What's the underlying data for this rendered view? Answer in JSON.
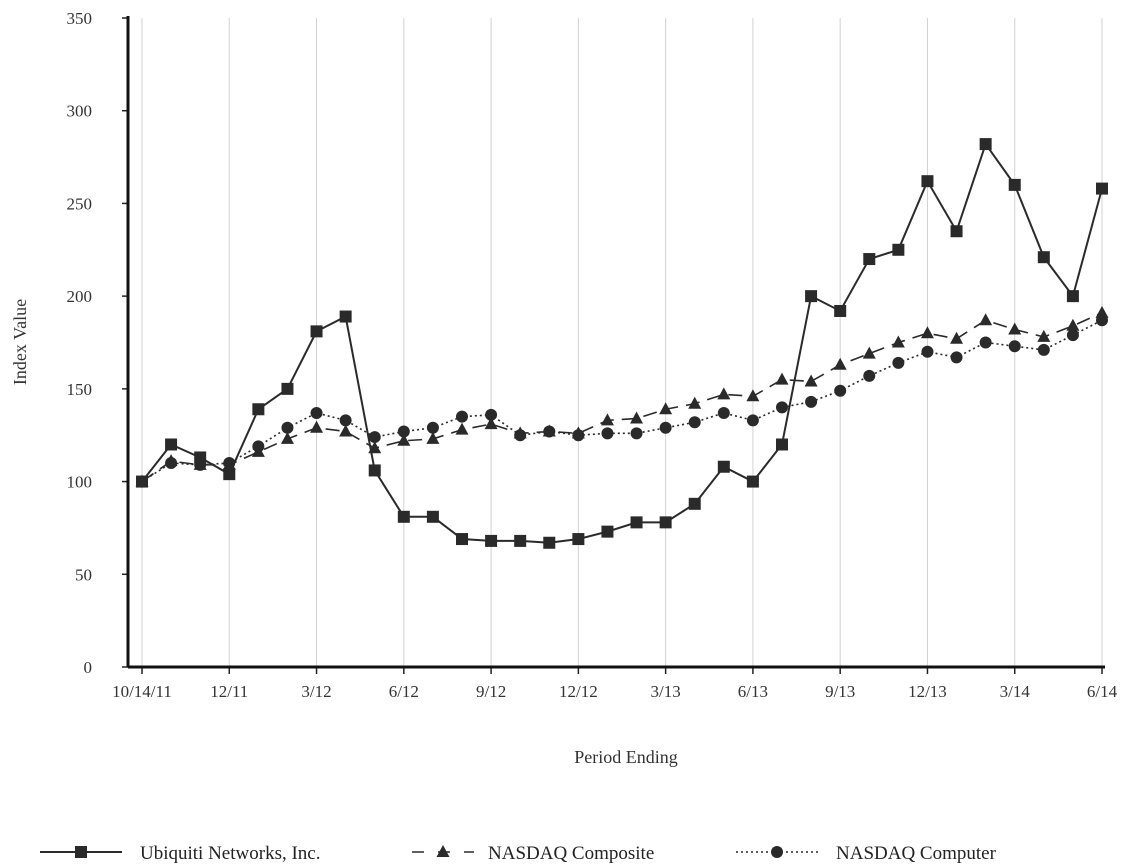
{
  "chart_data": {
    "type": "line",
    "title": "",
    "xlabel": "Period Ending",
    "ylabel": "Index Value",
    "ylim": [
      0,
      350
    ],
    "yticks": [
      0,
      50,
      100,
      150,
      200,
      250,
      300,
      350
    ],
    "grid": "vertical",
    "legend_position": "bottom",
    "x_tick_labels": [
      {
        "index": 0,
        "label": "10/14/11"
      },
      {
        "index": 3,
        "label": "12/11"
      },
      {
        "index": 6,
        "label": "3/12"
      },
      {
        "index": 9,
        "label": "6/12"
      },
      {
        "index": 12,
        "label": "9/12"
      },
      {
        "index": 15,
        "label": "12/12"
      },
      {
        "index": 18,
        "label": "3/13"
      },
      {
        "index": 21,
        "label": "6/13"
      },
      {
        "index": 24,
        "label": "9/13"
      },
      {
        "index": 27,
        "label": "12/13"
      },
      {
        "index": 30,
        "label": "3/14"
      },
      {
        "index": 33,
        "label": "6/14"
      }
    ],
    "series": [
      {
        "name": "Ubiquiti Networks, Inc.",
        "marker": "square",
        "line_style": "solid",
        "values": [
          100,
          120,
          113,
          104,
          139,
          150,
          181,
          189,
          106,
          81,
          81,
          69,
          68,
          68,
          67,
          69,
          73,
          78,
          78,
          88,
          108,
          100,
          120,
          200,
          192,
          220,
          225,
          262,
          235,
          282,
          260,
          221,
          200,
          258
        ]
      },
      {
        "name": "NASDAQ Composite",
        "marker": "triangle",
        "line_style": "dashed",
        "values": [
          100,
          111,
          109,
          109,
          116,
          123,
          129,
          127,
          118,
          122,
          123,
          128,
          131,
          126,
          127,
          126,
          133,
          134,
          139,
          142,
          147,
          146,
          155,
          154,
          163,
          169,
          175,
          180,
          177,
          187,
          182,
          178,
          184,
          191
        ]
      },
      {
        "name": "NASDAQ Computer",
        "marker": "circle",
        "line_style": "dotted",
        "values": [
          100,
          110,
          109,
          110,
          119,
          129,
          137,
          133,
          124,
          127,
          129,
          135,
          136,
          125,
          127,
          125,
          126,
          126,
          129,
          132,
          137,
          133,
          140,
          143,
          149,
          157,
          164,
          170,
          167,
          175,
          173,
          171,
          179,
          187
        ]
      }
    ]
  }
}
